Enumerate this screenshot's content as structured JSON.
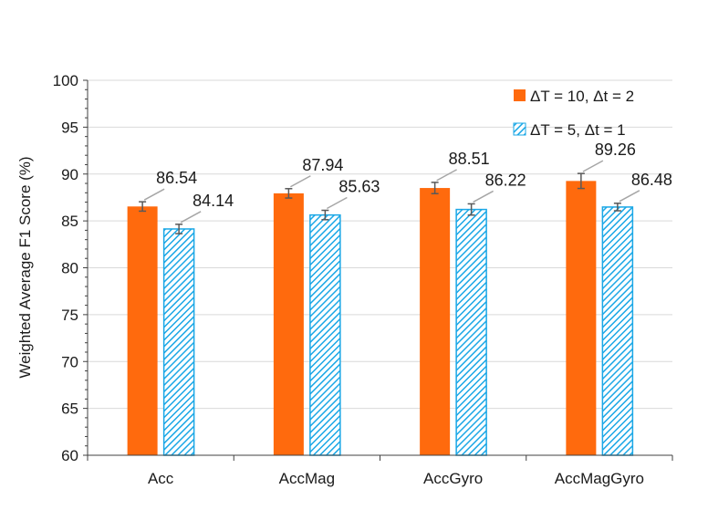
{
  "chart_data": {
    "type": "bar",
    "title": "",
    "xlabel": "",
    "ylabel": "Weighted Average F1 Score (%)",
    "ylim": [
      60,
      100
    ],
    "yticks": [
      60,
      65,
      70,
      75,
      80,
      85,
      90,
      95,
      100
    ],
    "grid": true,
    "legend_position": "top-right",
    "categories": [
      "Acc",
      "AccMag",
      "AccGyro",
      "AccMagGyro"
    ],
    "series": [
      {
        "name": "ΔT = 10, Δt = 2",
        "color": "#ff6a0d",
        "pattern": "solid",
        "values": [
          86.54,
          87.94,
          88.51,
          89.26
        ],
        "value_labels": [
          "86.54",
          "87.94",
          "88.51",
          "89.26"
        ],
        "error": [
          0.5,
          0.5,
          0.6,
          0.8
        ]
      },
      {
        "name": "ΔT = 5, Δt = 1",
        "color": "#1aa7e6",
        "pattern": "diagonal-hatch",
        "values": [
          84.14,
          85.63,
          86.22,
          86.48
        ],
        "value_labels": [
          "84.14",
          "85.63",
          "86.22",
          "86.48"
        ],
        "error": [
          0.5,
          0.5,
          0.6,
          0.4
        ]
      }
    ]
  }
}
